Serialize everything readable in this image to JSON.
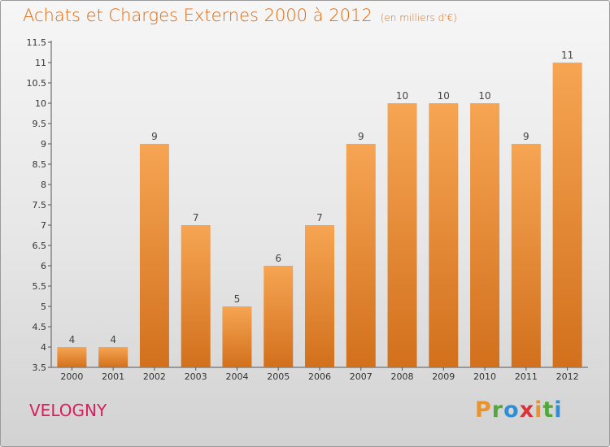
{
  "chart_data": {
    "type": "bar",
    "title": "Achats et Charges Externes 2000 à 2012",
    "subtitle": "(en milliers d'€)",
    "categories": [
      "2000",
      "2001",
      "2002",
      "2003",
      "2004",
      "2005",
      "2006",
      "2007",
      "2008",
      "2009",
      "2010",
      "2011",
      "2012"
    ],
    "values": [
      4,
      4,
      9,
      7,
      5,
      6,
      7,
      9,
      10,
      10,
      10,
      9,
      11
    ],
    "value_labels": [
      "4",
      "4",
      "9",
      "7",
      "5",
      "6",
      "7",
      "9",
      "10",
      "10",
      "10",
      "9",
      "11"
    ],
    "xlabel": "",
    "ylabel": "",
    "ylim": [
      3.5,
      11.5
    ],
    "yticks": [
      "3.5",
      "4",
      "4.5",
      "5",
      "5.5",
      "6",
      "6.5",
      "7",
      "7.5",
      "8",
      "8.5",
      "9",
      "9.5",
      "10",
      "10.5",
      "11",
      "11.5"
    ],
    "grid": false,
    "bar_color_top": "#f6a553",
    "bar_color_bottom": "#d2701c"
  },
  "footer": {
    "place": "VELOGNY",
    "brand": "Proxiti",
    "brand_colors": [
      "#e9932c",
      "#53a83a",
      "#2f8fd6",
      "#d8323a",
      "#e9932c",
      "#53a83a",
      "#2f8fd6"
    ]
  }
}
